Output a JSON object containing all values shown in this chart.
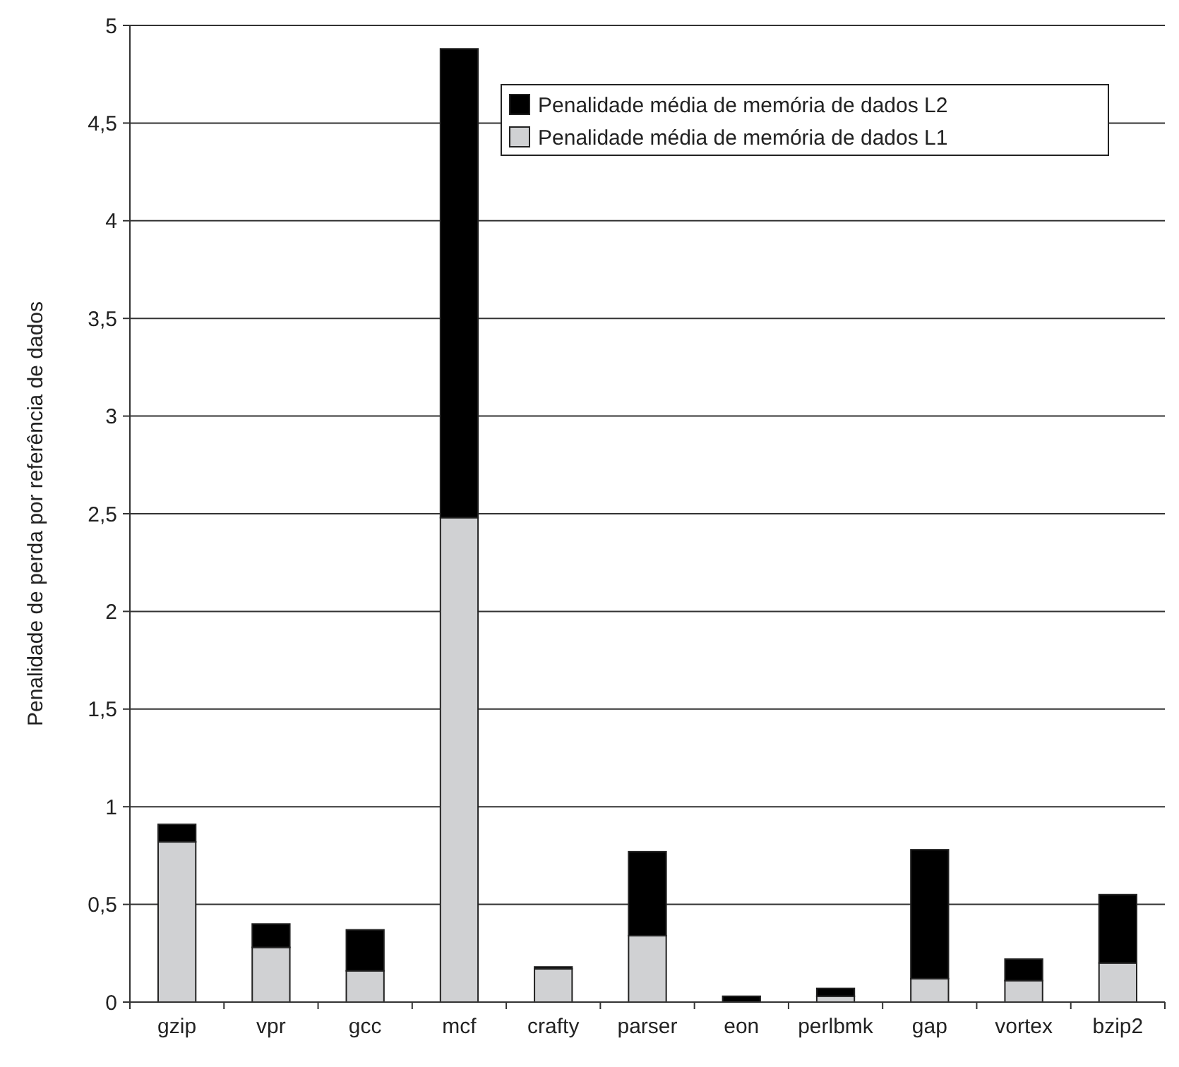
{
  "chart_data": {
    "type": "bar",
    "stacked": true,
    "ylabel": "Penalidade de perda por referência de dados",
    "categories": [
      "gzip",
      "vpr",
      "gcc",
      "mcf",
      "crafty",
      "parser",
      "eon",
      "perlbmk",
      "gap",
      "vortex",
      "bzip2"
    ],
    "series": [
      {
        "name": "Penalidade média de memória de dados L1",
        "color": "#d0d1d3",
        "values": [
          0.82,
          0.28,
          0.16,
          2.48,
          0.17,
          0.34,
          0,
          0.03,
          0.12,
          0.11,
          0.2
        ]
      },
      {
        "name": "Penalidade média de memória de dados L2",
        "color": "#000000",
        "values": [
          0.09,
          0.12,
          0.21,
          2.4,
          0.01,
          0.43,
          0.03,
          0.04,
          0.66,
          0.11,
          0.35
        ]
      }
    ],
    "ylim": [
      0,
      5
    ],
    "yticks": [
      0,
      {
        "value": 0.5,
        "label": "0,5"
      },
      1,
      {
        "value": 1.5,
        "label": "1,5"
      },
      2,
      {
        "value": 2.5,
        "label": "2,5"
      },
      3,
      {
        "value": 3.5,
        "label": "3,5"
      },
      4,
      {
        "value": 4.5,
        "label": "4,5"
      },
      5
    ],
    "grid": "y",
    "legend": "top right"
  }
}
